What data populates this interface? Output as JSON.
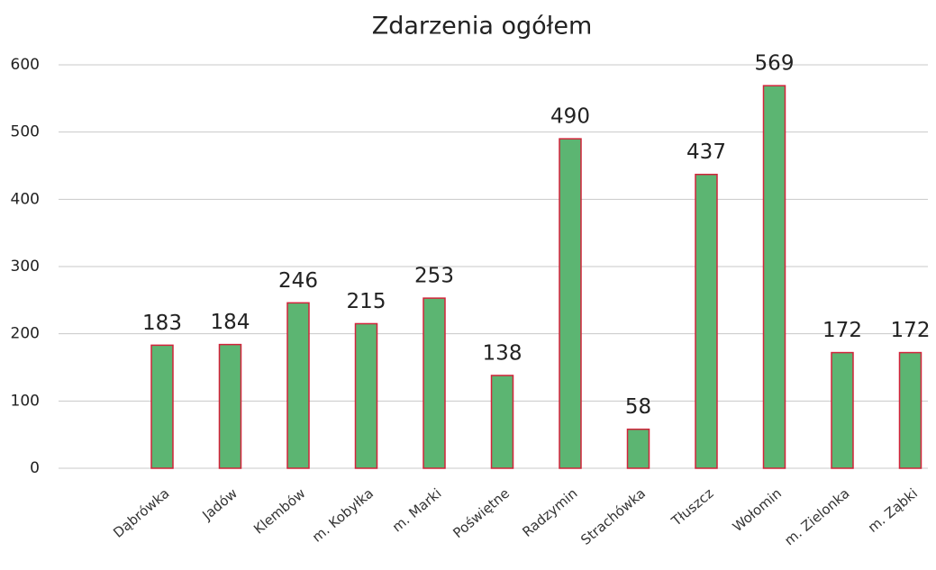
{
  "chart_data": {
    "type": "bar",
    "title": "Zdarzenia ogółem",
    "categories": [
      "Dąbrówka",
      "Jadów",
      "Klembów",
      "m. Kobyłka",
      "m. Marki",
      "Poświętne",
      "Radzymin",
      "Strachówka",
      "Tłuszcz",
      "Wołomin",
      "m. Zielonka",
      "m. Ząbki"
    ],
    "values": [
      183,
      184,
      246,
      215,
      253,
      138,
      490,
      58,
      437,
      569,
      172,
      172
    ],
    "color": "#5cb572",
    "edge_color": "#d2233a",
    "ylim": [
      0,
      600
    ],
    "yticks": [
      0,
      100,
      200,
      300,
      400,
      500,
      600
    ],
    "grid": true
  }
}
